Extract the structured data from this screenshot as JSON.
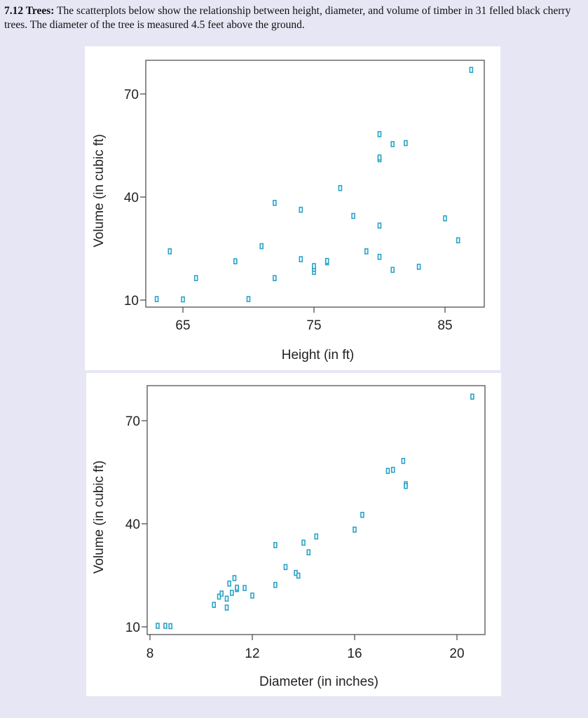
{
  "problem": {
    "number": "7.12 Trees:",
    "text": "The scatterplots below show the relationship between height, diameter, and volume of timber in 31 felled black cherry trees. The diameter of the tree is measured 4.5 feet above the ground."
  },
  "colors": {
    "marker": "#29a3c7",
    "axis": "#444444"
  },
  "chart_data": [
    {
      "type": "scatter",
      "xlabel": "Height (in ft)",
      "ylabel": "Volume (in cubic ft)",
      "x_ticks": [
        65,
        75,
        85
      ],
      "y_ticks": [
        10,
        40,
        70
      ],
      "xlim": [
        62.5,
        87.5
      ],
      "ylim": [
        8,
        80
      ],
      "points": [
        {
          "x": 63,
          "y": 10.3
        },
        {
          "x": 64,
          "y": 24.2
        },
        {
          "x": 65,
          "y": 10.2
        },
        {
          "x": 66,
          "y": 16.4
        },
        {
          "x": 69,
          "y": 21.3
        },
        {
          "x": 70,
          "y": 10.3
        },
        {
          "x": 71,
          "y": 25.7
        },
        {
          "x": 72,
          "y": 38.3
        },
        {
          "x": 72,
          "y": 16.4
        },
        {
          "x": 74,
          "y": 36.3
        },
        {
          "x": 74,
          "y": 21.9
        },
        {
          "x": 75,
          "y": 18.2
        },
        {
          "x": 75,
          "y": 19.1
        },
        {
          "x": 75,
          "y": 19.9
        },
        {
          "x": 76,
          "y": 21.0
        },
        {
          "x": 76,
          "y": 21.4
        },
        {
          "x": 77,
          "y": 42.6
        },
        {
          "x": 78,
          "y": 34.5
        },
        {
          "x": 79,
          "y": 24.2
        },
        {
          "x": 80,
          "y": 58.3
        },
        {
          "x": 80,
          "y": 51.0
        },
        {
          "x": 80,
          "y": 51.5
        },
        {
          "x": 80,
          "y": 31.7
        },
        {
          "x": 80,
          "y": 22.6
        },
        {
          "x": 81,
          "y": 55.4
        },
        {
          "x": 81,
          "y": 18.8
        },
        {
          "x": 82,
          "y": 55.7
        },
        {
          "x": 83,
          "y": 19.7
        },
        {
          "x": 85,
          "y": 33.8
        },
        {
          "x": 86,
          "y": 27.4
        },
        {
          "x": 87,
          "y": 77.0
        }
      ]
    },
    {
      "type": "scatter",
      "xlabel": "Diameter (in inches)",
      "ylabel": "Volume (in cubic ft)",
      "x_ticks": [
        8,
        12,
        16,
        20
      ],
      "y_ticks": [
        10,
        40,
        70
      ],
      "xlim": [
        8,
        21
      ],
      "ylim": [
        8,
        80
      ],
      "points": [
        {
          "x": 8.3,
          "y": 10.3
        },
        {
          "x": 8.6,
          "y": 10.3
        },
        {
          "x": 8.8,
          "y": 10.2
        },
        {
          "x": 10.5,
          "y": 16.4
        },
        {
          "x": 10.7,
          "y": 18.8
        },
        {
          "x": 10.8,
          "y": 19.7
        },
        {
          "x": 11.0,
          "y": 15.6
        },
        {
          "x": 11.0,
          "y": 18.2
        },
        {
          "x": 11.1,
          "y": 22.6
        },
        {
          "x": 11.2,
          "y": 19.9
        },
        {
          "x": 11.3,
          "y": 24.2
        },
        {
          "x": 11.4,
          "y": 21.0
        },
        {
          "x": 11.4,
          "y": 21.4
        },
        {
          "x": 11.7,
          "y": 21.3
        },
        {
          "x": 12.0,
          "y": 19.1
        },
        {
          "x": 12.9,
          "y": 22.2
        },
        {
          "x": 12.9,
          "y": 33.8
        },
        {
          "x": 13.3,
          "y": 27.4
        },
        {
          "x": 13.7,
          "y": 25.7
        },
        {
          "x": 13.8,
          "y": 24.9
        },
        {
          "x": 14.0,
          "y": 34.5
        },
        {
          "x": 14.2,
          "y": 31.7
        },
        {
          "x": 14.5,
          "y": 36.3
        },
        {
          "x": 16.0,
          "y": 38.3
        },
        {
          "x": 16.3,
          "y": 42.6
        },
        {
          "x": 17.3,
          "y": 55.4
        },
        {
          "x": 17.5,
          "y": 55.7
        },
        {
          "x": 17.9,
          "y": 58.3
        },
        {
          "x": 18.0,
          "y": 51.5
        },
        {
          "x": 18.0,
          "y": 51.0
        },
        {
          "x": 20.6,
          "y": 77.0
        }
      ]
    }
  ]
}
